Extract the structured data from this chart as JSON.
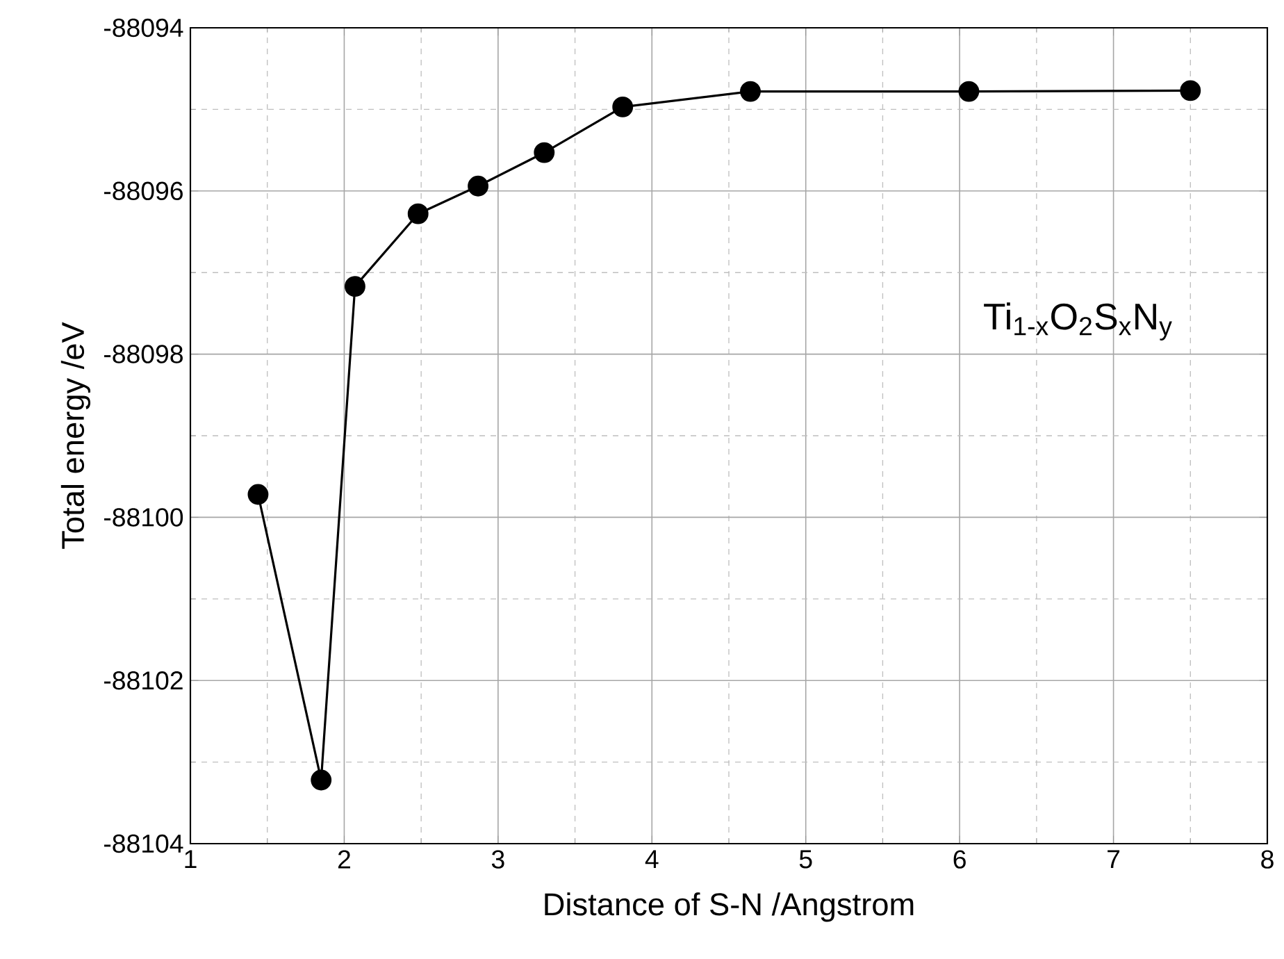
{
  "chart_data": {
    "type": "line",
    "xlabel": "Distance of S-N /Angstrom",
    "ylabel": "Total energy /eV",
    "annotations": [
      "Ti$_{1-x}$O$_{2}$S$_{x}$N$_{y}$"
    ],
    "x": [
      1.44,
      1.85,
      2.07,
      2.48,
      2.87,
      3.3,
      3.81,
      4.64,
      6.06,
      7.5
    ],
    "series": [
      {
        "color": "#000000",
        "values": [
          -88099.72,
          -88103.22,
          -88097.17,
          -88096.28,
          -88095.94,
          -88095.53,
          -88094.97,
          -88094.78,
          -88094.78,
          -88094.77
        ]
      }
    ],
    "xlim": [
      1,
      8
    ],
    "xticks": [
      1,
      2,
      3,
      4,
      5,
      6,
      7,
      8
    ],
    "ylim": [
      -88104,
      -88094
    ],
    "yticks": [
      -88104,
      -88102,
      -88100,
      -88098,
      -88096,
      -88094
    ],
    "grid": true,
    "marker": "circle",
    "line_style": "solid"
  }
}
